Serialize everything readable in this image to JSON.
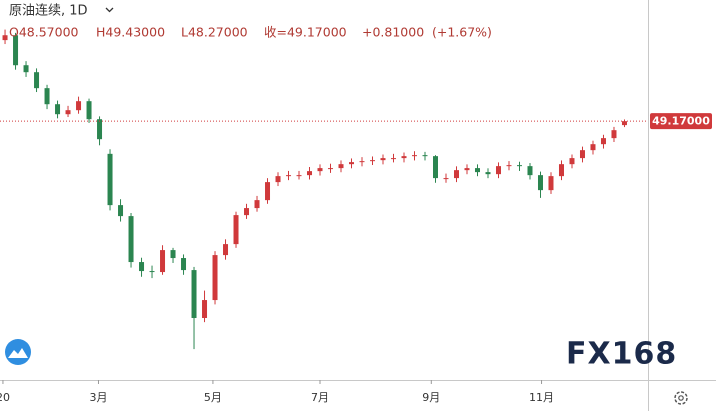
{
  "chart_data": {
    "type": "candlestick",
    "header": {
      "symbol": "原油连续, 1D",
      "open": "O48.57000",
      "high": "H49.43000",
      "low": "L48.27000",
      "close": "收=49.17000",
      "change": "+0.81000",
      "change_pct": "(+1.67%)"
    },
    "logo": "FX168",
    "up_color": "#d0393b",
    "down_color": "#2b8550",
    "last_price": {
      "value": 49.17,
      "label": "49.17000"
    },
    "xlim": [
      -0.48,
      61.24
    ],
    "ylim": [
      9.8,
      67.6
    ],
    "xticks": [
      {
        "value": -0.2,
        "label": "20"
      },
      {
        "value": 8.9,
        "label": "3月"
      },
      {
        "value": 19.8,
        "label": "5月"
      },
      {
        "value": 30.0,
        "label": "7月"
      },
      {
        "value": 40.6,
        "label": "9月"
      },
      {
        "value": 51.1,
        "label": "11月"
      }
    ],
    "open": [
      61.5,
      62.24,
      57.68,
      56.62,
      54.19,
      51.75,
      50.23,
      50.84,
      52.21,
      49.47,
      44.2,
      36.4,
      34.73,
      27.74,
      26.37,
      26.22,
      29.56,
      28.35,
      26.52,
      19.23,
      21.96,
      28.8,
      30.47,
      34.88,
      35.95,
      37.16,
      39.9,
      40.81,
      40.96,
      40.96,
      41.57,
      42.03,
      42.03,
      42.63,
      42.94,
      43.09,
      43.24,
      43.55,
      43.55,
      43.85,
      44.0,
      43.85,
      40.51,
      40.51,
      41.72,
      42.03,
      41.42,
      41.11,
      42.33,
      42.48,
      42.33,
      40.96,
      38.68,
      40.81,
      42.63,
      43.55,
      44.76,
      45.67,
      46.59,
      48.57
    ],
    "high": [
      63.1,
      62.6,
      58.3,
      57.2,
      54.7,
      52.3,
      51.5,
      52.9,
      52.6,
      49.9,
      44.9,
      37.3,
      35.2,
      28.4,
      27.2,
      30.3,
      29.9,
      28.9,
      27.0,
      23.4,
      29.4,
      31.2,
      35.4,
      36.6,
      37.8,
      40.5,
      41.4,
      41.6,
      41.6,
      42.2,
      42.6,
      42.7,
      43.2,
      43.5,
      43.7,
      43.8,
      44.1,
      44.2,
      44.4,
      44.6,
      44.5,
      44.0,
      41.2,
      42.3,
      42.6,
      42.6,
      42.0,
      42.9,
      43.1,
      43.0,
      42.8,
      41.5,
      41.4,
      43.2,
      44.1,
      45.3,
      46.2,
      47.1,
      48.3,
      49.43
    ],
    "low": [
      60.9,
      57.0,
      55.9,
      53.6,
      51.0,
      49.6,
      49.8,
      50.3,
      48.9,
      45.5,
      35.6,
      33.9,
      26.9,
      25.5,
      25.3,
      25.8,
      27.6,
      25.8,
      14.5,
      18.6,
      21.3,
      28.1,
      29.9,
      34.3,
      35.4,
      36.6,
      39.3,
      40.2,
      40.3,
      40.3,
      40.9,
      41.3,
      41.4,
      42.0,
      42.3,
      42.5,
      42.6,
      42.9,
      42.9,
      43.2,
      43.2,
      39.8,
      39.8,
      39.9,
      41.1,
      40.8,
      40.5,
      40.5,
      41.7,
      41.6,
      40.3,
      37.5,
      38.1,
      40.2,
      42.0,
      42.9,
      44.1,
      45.0,
      46.0,
      48.27
    ],
    "close": [
      62.24,
      57.68,
      56.62,
      54.19,
      51.75,
      50.23,
      50.84,
      52.21,
      49.47,
      46.43,
      36.4,
      34.73,
      27.74,
      26.37,
      26.22,
      29.56,
      28.35,
      26.52,
      19.23,
      21.96,
      28.8,
      30.47,
      34.88,
      35.95,
      37.16,
      39.9,
      40.81,
      40.96,
      40.96,
      41.57,
      42.03,
      42.03,
      42.63,
      42.94,
      43.09,
      43.24,
      43.55,
      43.55,
      43.85,
      44.0,
      43.85,
      40.51,
      40.51,
      41.72,
      42.03,
      41.42,
      41.11,
      42.33,
      42.48,
      42.33,
      40.96,
      38.68,
      40.81,
      42.63,
      43.55,
      44.76,
      45.67,
      46.59,
      47.8,
      49.17
    ]
  }
}
